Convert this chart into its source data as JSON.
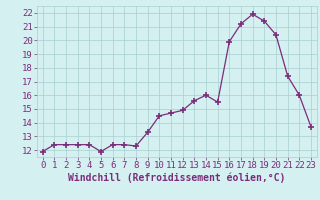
{
  "x": [
    0,
    1,
    2,
    3,
    4,
    5,
    6,
    7,
    8,
    9,
    10,
    11,
    12,
    13,
    14,
    15,
    16,
    17,
    18,
    19,
    20,
    21,
    22,
    23
  ],
  "y": [
    11.9,
    12.4,
    12.4,
    12.4,
    12.4,
    11.9,
    12.4,
    12.4,
    12.3,
    13.3,
    14.5,
    14.7,
    14.9,
    15.6,
    16.0,
    15.5,
    19.9,
    21.2,
    21.9,
    21.4,
    20.4,
    17.4,
    16.0,
    13.7
  ],
  "line_color": "#7b2d7b",
  "marker": "P",
  "marker_color": "#7b2d7b",
  "bg_color": "#d4f0f0",
  "grid_color": "#a8cece",
  "tick_color": "#7b2d7b",
  "xlabel": "Windchill (Refroidissement éolien,°C)",
  "xlim": [
    -0.5,
    23.5
  ],
  "ylim": [
    11.5,
    22.5
  ],
  "yticks": [
    12,
    13,
    14,
    15,
    16,
    17,
    18,
    19,
    20,
    21,
    22
  ],
  "xticks": [
    0,
    1,
    2,
    3,
    4,
    5,
    6,
    7,
    8,
    9,
    10,
    11,
    12,
    13,
    14,
    15,
    16,
    17,
    18,
    19,
    20,
    21,
    22,
    23
  ],
  "font_size": 6.5,
  "xlabel_font_size": 7.0
}
